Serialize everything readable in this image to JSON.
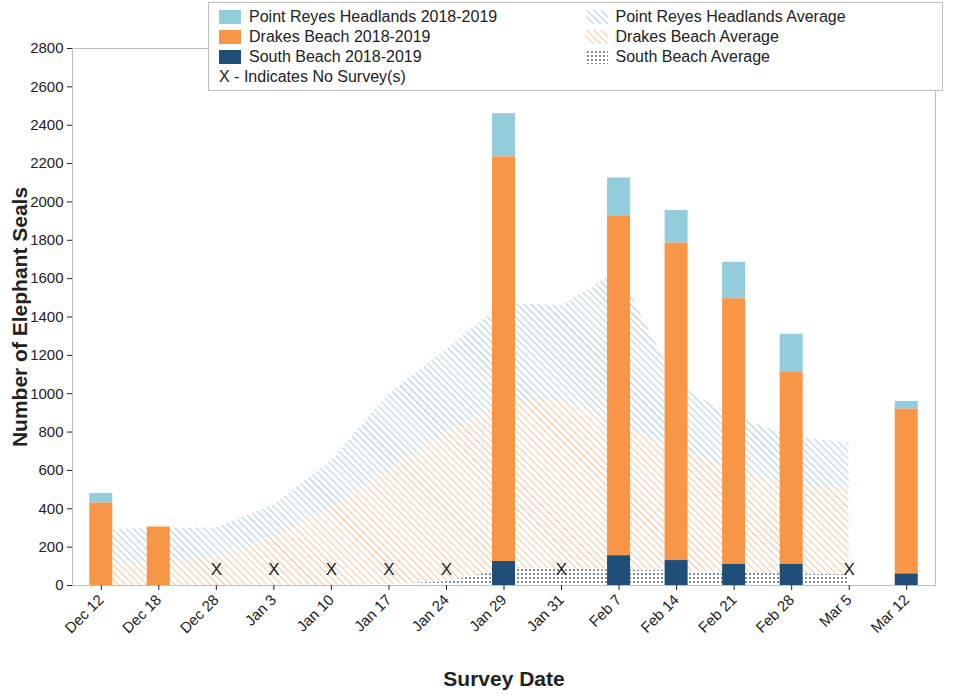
{
  "chart_data": {
    "type": "bar",
    "x_label": "Survey Date",
    "y_label": "Number of Elephant Seals",
    "categories": [
      "Dec 12",
      "Dec 18",
      "Dec 28",
      "Jan 3",
      "Jan 10",
      "Jan 17",
      "Jan 24",
      "Jan 29",
      "Jan 31",
      "Feb 7",
      "Feb 14",
      "Feb 21",
      "Feb 28",
      "Mar 5",
      "Mar 12"
    ],
    "series": [
      {
        "name": "Point Reyes Headlands 2018-2019",
        "type": "bar",
        "color": "#93cddd",
        "values": [
          50,
          0,
          null,
          null,
          null,
          null,
          null,
          225,
          null,
          200,
          170,
          190,
          200,
          null,
          40
        ]
      },
      {
        "name": "Point Reyes Headlands Average",
        "type": "area",
        "color": "#7fb8cc",
        "line_style": "hatched",
        "values": [
          185,
          175,
          150,
          170,
          250,
          400,
          430,
          510,
          490,
          800,
          330,
          280,
          250,
          240,
          null
        ]
      },
      {
        "name": "Drakes Beach 2018-2019",
        "type": "bar",
        "color": "#f79646",
        "values": [
          430,
          305,
          null,
          null,
          null,
          null,
          null,
          2110,
          null,
          1770,
          1655,
          1385,
          1000,
          null,
          860
        ]
      },
      {
        "name": "Drakes Beach Average",
        "type": "area",
        "color": "#f2a46a",
        "line_style": "hatched",
        "values": [
          105,
          125,
          150,
          250,
          400,
          595,
          780,
          875,
          885,
          760,
          645,
          535,
          470,
          445,
          null
        ]
      },
      {
        "name": "South Beach 2018-2019",
        "type": "bar",
        "color": "#1f4e79",
        "values": [
          0,
          0,
          null,
          null,
          null,
          null,
          null,
          125,
          null,
          155,
          130,
          110,
          110,
          null,
          60
        ]
      },
      {
        "name": "South Beach Average",
        "type": "area",
        "color": "#44546a",
        "line_style": "dotted",
        "values": [
          0,
          0,
          0,
          0,
          0,
          5,
          20,
          85,
          85,
          80,
          75,
          65,
          60,
          55,
          null
        ]
      }
    ],
    "stacked": true,
    "ylim": [
      0,
      2800
    ],
    "yticks": [
      0,
      200,
      400,
      600,
      800,
      1000,
      1200,
      1400,
      1600,
      1800,
      2000,
      2200,
      2400,
      2600,
      2800
    ],
    "grid": false,
    "legend": "top",
    "no_survey_marker": "X",
    "no_survey_note": "X - Indicates No Survey(s)"
  }
}
